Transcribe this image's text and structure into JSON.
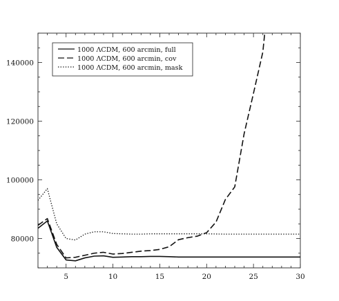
{
  "chart_data": {
    "type": "line",
    "title": "",
    "xlabel": "",
    "ylabel": "",
    "xlim": [
      2,
      30
    ],
    "ylim": [
      70000,
      150000
    ],
    "x_ticks": [
      5,
      10,
      15,
      20,
      25,
      30
    ],
    "x_tick_labels": [
      "5",
      "10",
      "15",
      "20",
      "25",
      "30"
    ],
    "y_ticks": [
      80000,
      100000,
      120000,
      140000
    ],
    "y_tick_labels": [
      "80000",
      "100000",
      "120000",
      "140000"
    ],
    "grid": false,
    "legend_position": "top-left",
    "series": [
      {
        "name": "1000 ΛCDM, 600 arcmin, full",
        "dash": "solid",
        "x": [
          2,
          3,
          4,
          5,
          6,
          7,
          8,
          9,
          10,
          11,
          12,
          13,
          14,
          15,
          16,
          17,
          18,
          20,
          22,
          25,
          30
        ],
        "y": [
          83500,
          86000,
          77000,
          72700,
          72400,
          73400,
          74000,
          74100,
          73600,
          73700,
          73800,
          73800,
          73900,
          73900,
          73800,
          73700,
          73700,
          73700,
          73700,
          73700,
          73700
        ]
      },
      {
        "name": "1000 ΛCDM, 600 arcmin, cov",
        "dash": "dashed",
        "x": [
          2,
          3,
          4,
          5,
          6,
          7,
          8,
          9,
          10,
          11,
          12,
          13,
          14,
          15,
          16,
          17,
          18,
          19,
          20,
          21,
          22,
          23,
          24,
          25,
          26,
          26.2
        ],
        "y": [
          84500,
          86800,
          78000,
          73400,
          73600,
          74300,
          75000,
          75300,
          74700,
          74900,
          75300,
          75700,
          75900,
          76300,
          77200,
          79600,
          80300,
          80800,
          82000,
          85600,
          93300,
          97600,
          115700,
          129500,
          143600,
          150000
        ]
      },
      {
        "name": "1000 ΛCDM, 600 arcmin, mask",
        "dash": "dotted",
        "x": [
          2,
          3,
          4,
          5,
          6,
          7,
          8,
          9,
          10,
          11,
          12,
          13,
          14,
          15,
          16,
          17,
          18,
          19,
          20,
          22,
          25,
          30
        ],
        "y": [
          93000,
          97000,
          85000,
          80000,
          79500,
          81500,
          82300,
          82300,
          81700,
          81600,
          81500,
          81500,
          81600,
          81600,
          81600,
          81600,
          81600,
          81600,
          81600,
          81500,
          81500,
          81500
        ]
      }
    ]
  }
}
